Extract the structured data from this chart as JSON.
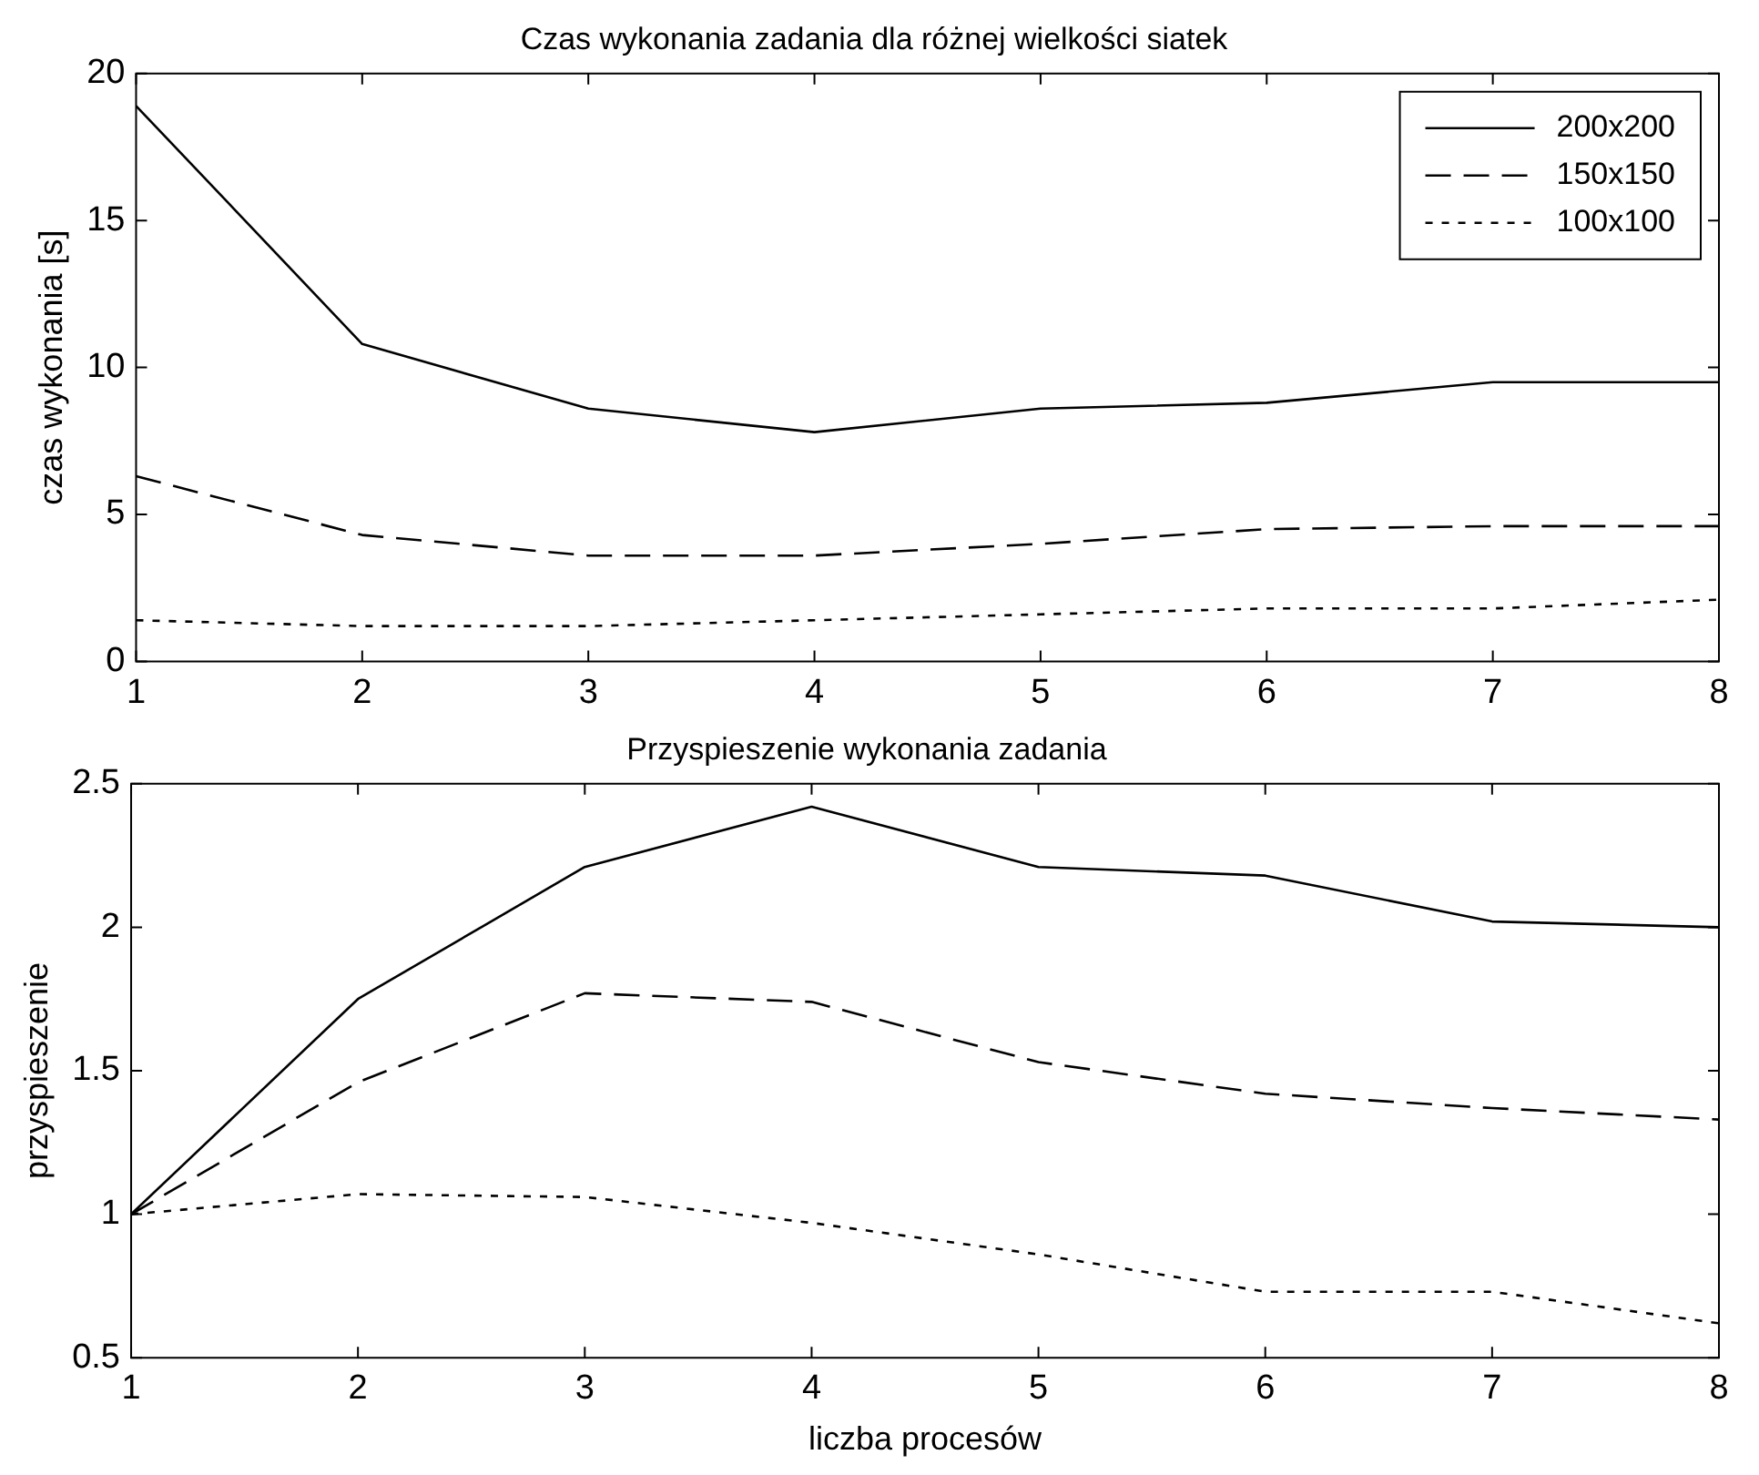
{
  "chart_data": [
    {
      "type": "line",
      "title": "Czas wykonania zadania dla różnej wielkości siatek",
      "ylabel": "czas wykonania [s]",
      "x": [
        1,
        2,
        3,
        4,
        5,
        6,
        7,
        8
      ],
      "xlim": [
        1,
        8
      ],
      "xticks": [
        1,
        2,
        3,
        4,
        5,
        6,
        7,
        8
      ],
      "ylim": [
        0,
        20
      ],
      "yticks": [
        0,
        5,
        10,
        15,
        20
      ],
      "grid": false,
      "legend": "top right",
      "marker": "none",
      "series": [
        {
          "name": "200x200",
          "color": "#000000",
          "line_style": "solid",
          "values": [
            18.9,
            10.8,
            8.6,
            7.8,
            8.6,
            8.8,
            9.5,
            9.5
          ]
        },
        {
          "name": "150x150",
          "color": "#000000",
          "line_style": "dashed",
          "values": [
            6.3,
            4.3,
            3.6,
            3.6,
            4.0,
            4.5,
            4.6,
            4.6
          ]
        },
        {
          "name": "100x100",
          "color": "#000000",
          "line_style": "dotted",
          "values": [
            1.4,
            1.2,
            1.2,
            1.4,
            1.6,
            1.8,
            1.8,
            2.1
          ]
        }
      ]
    },
    {
      "type": "line",
      "title": "Przyspieszenie wykonania zadania",
      "xlabel": "liczba procesów",
      "ylabel": "przyspieszenie",
      "x": [
        1,
        2,
        3,
        4,
        5,
        6,
        7,
        8
      ],
      "xlim": [
        1,
        8
      ],
      "xticks": [
        1,
        2,
        3,
        4,
        5,
        6,
        7,
        8
      ],
      "ylim": [
        0.5,
        2.5
      ],
      "yticks": [
        0.5,
        1,
        1.5,
        2,
        2.5
      ],
      "grid": false,
      "marker": "none",
      "series": [
        {
          "color": "#000000",
          "line_style": "solid",
          "values": [
            1,
            1.75,
            2.21,
            2.42,
            2.21,
            2.18,
            2.02,
            2.0
          ]
        },
        {
          "color": "#000000",
          "line_style": "dashed",
          "values": [
            1,
            1.46,
            1.77,
            1.74,
            1.53,
            1.42,
            1.37,
            1.33
          ]
        },
        {
          "color": "#000000",
          "line_style": "dotted",
          "values": [
            1,
            1.07,
            1.06,
            0.97,
            0.86,
            0.73,
            0.73,
            0.62
          ]
        }
      ]
    }
  ]
}
